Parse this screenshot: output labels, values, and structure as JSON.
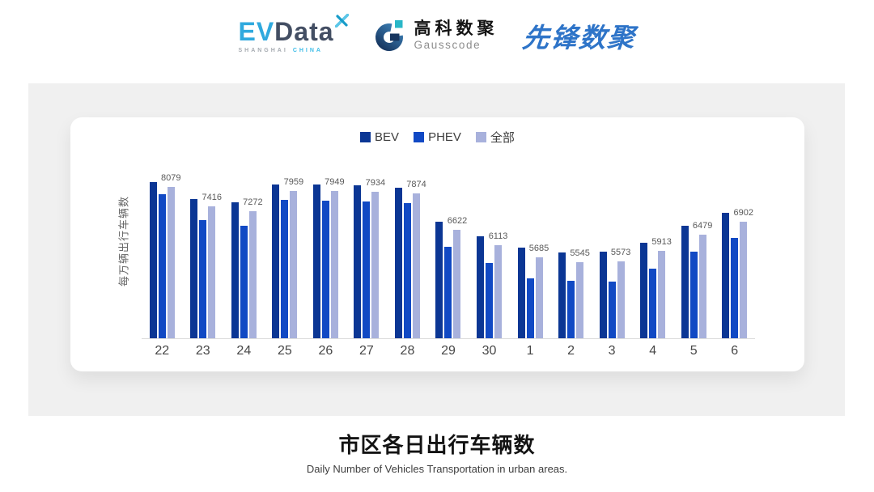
{
  "header": {
    "evdata": {
      "ev": "EV",
      "data": "Data",
      "region": "SHANGHAI",
      "country": "CHINA"
    },
    "gausscode": {
      "cn": "高科数聚",
      "en": "Gausscode"
    },
    "xianfeng": "先锋数聚"
  },
  "chart_data": {
    "type": "bar",
    "title": "市区各日出行车辆数",
    "subtitle": "Daily Number of Vehicles Transportation in urban areas.",
    "ylabel": "每万辆出行车辆数",
    "xlabel": "",
    "categories": [
      "22",
      "23",
      "24",
      "25",
      "26",
      "27",
      "28",
      "29",
      "30",
      "1",
      "2",
      "3",
      "4",
      "5",
      "6"
    ],
    "series": [
      {
        "name": "BEV",
        "slug": "bev",
        "color": "#0b3694",
        "values": [
          8244,
          7667,
          7557,
          8162,
          8162,
          8135,
          8052,
          6906,
          6411,
          6026,
          5861,
          5888,
          6202,
          6760,
          7200
        ]
      },
      {
        "name": "PHEV",
        "slug": "phev",
        "color": "#1149c4",
        "values": [
          7851,
          6961,
          6760,
          7648,
          7631,
          7604,
          7538,
          6045,
          5495,
          4992,
          4899,
          4871,
          5311,
          5899,
          6348
        ]
      },
      {
        "name": "全部",
        "slug": "all",
        "color": "#a8b1dc",
        "values": [
          8079,
          7416,
          7272,
          7959,
          7949,
          7934,
          7874,
          6622,
          6113,
          5685,
          5545,
          5573,
          5913,
          6479,
          6902
        ]
      }
    ],
    "data_labels_series": "全部",
    "data_labels": [
      "8079",
      "7416",
      "7272",
      "7959",
      "7949",
      "7934",
      "7874",
      "6622",
      "6113",
      "5685",
      "5545",
      "5573",
      "5913",
      "6479",
      "6902"
    ],
    "ylim": [
      2947,
      8940
    ],
    "grid": false,
    "legend_position": "top",
    "axis_line_color": "#dcdcdc"
  }
}
